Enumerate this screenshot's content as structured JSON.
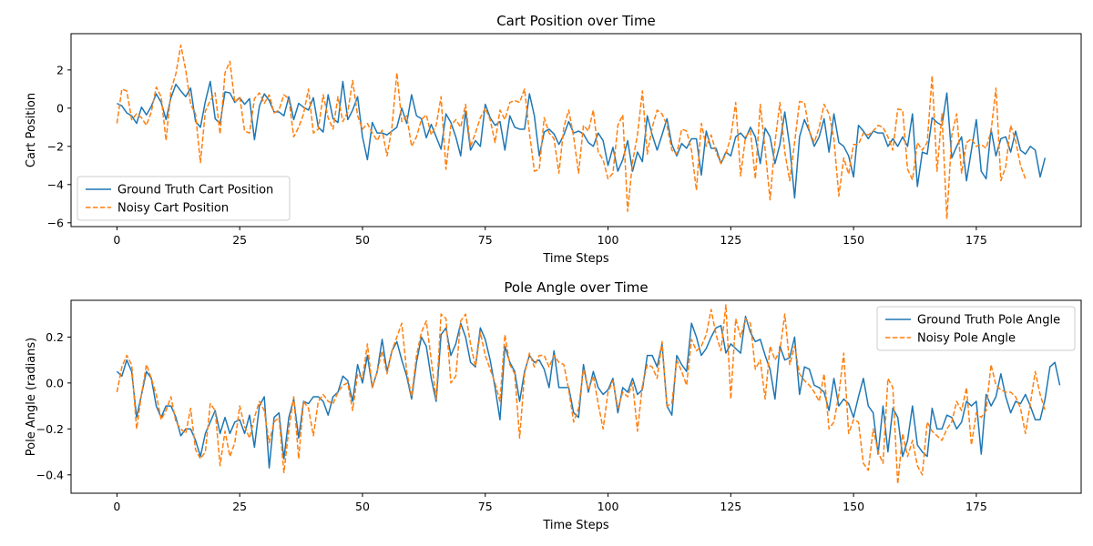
{
  "chart_data": [
    {
      "type": "line",
      "title": "Cart Position over Time",
      "xlabel": "Time Steps",
      "ylabel": "Cart Position",
      "xlim": [
        -9.35,
        196.35
      ],
      "ylim": [
        -6.2,
        3.9
      ],
      "xticks": [
        0,
        25,
        50,
        75,
        100,
        125,
        150,
        175
      ],
      "yticks": [
        -6,
        -4,
        -2,
        0,
        2
      ],
      "legend": "lower-left",
      "grid": false,
      "series": [
        {
          "name": "Ground Truth Cart Position",
          "color": "#1f77b4",
          "style": "solid",
          "values": [
            0.25,
            0.12,
            -0.25,
            -0.4,
            -0.8,
            0.05,
            -0.35,
            0.1,
            0.75,
            0.3,
            -0.6,
            0.55,
            1.25,
            0.9,
            0.6,
            1.05,
            -0.7,
            -1.0,
            0.35,
            1.4,
            -0.55,
            -0.8,
            0.85,
            0.8,
            0.3,
            0.55,
            0.2,
            0.5,
            -1.65,
            0.1,
            0.75,
            0.4,
            -0.2,
            -0.2,
            -0.4,
            0.6,
            -0.6,
            0.25,
            0.05,
            -0.1,
            0.55,
            -1.0,
            -1.25,
            0.7,
            -0.55,
            -0.75,
            1.4,
            -0.6,
            -0.1,
            0.6,
            -1.5,
            -2.7,
            -0.75,
            -1.3,
            -1.3,
            -1.4,
            -1.2,
            -1.0,
            0.0,
            -0.8,
            0.7,
            -0.4,
            -0.55,
            -1.55,
            -0.85,
            -1.5,
            -2.15,
            -0.3,
            -0.75,
            -1.5,
            -2.5,
            -0.15,
            -2.2,
            -1.7,
            -2.0,
            0.2,
            -0.5,
            -0.9,
            -0.7,
            -2.2,
            -0.4,
            -1.0,
            -1.1,
            -1.1,
            0.75,
            -0.4,
            -2.5,
            -1.25,
            -1.1,
            -1.35,
            -1.9,
            -1.4,
            -0.7,
            -1.3,
            -1.2,
            -1.35,
            -1.8,
            -2.0,
            -1.3,
            -1.7,
            -3.0,
            -2.05,
            -3.3,
            -2.7,
            -1.7,
            -3.3,
            -2.3,
            -2.8,
            -0.4,
            -1.4,
            -2.2,
            -1.4,
            -0.55,
            -1.9,
            -2.5,
            -1.85,
            -2.1,
            -1.6,
            -1.6,
            -3.5,
            -1.2,
            -2.1,
            -2.1,
            -2.9,
            -2.3,
            -2.5,
            -1.5,
            -1.3,
            -1.6,
            -1.0,
            -1.5,
            -2.9,
            -1.05,
            -1.5,
            -2.9,
            -1.9,
            -0.2,
            -2.0,
            -4.7,
            -1.5,
            -0.6,
            -1.2,
            -2.0,
            -1.5,
            -0.55,
            -2.3,
            -0.3,
            -1.8,
            -2.0,
            -2.5,
            -3.6,
            -0.9,
            -1.2,
            -1.6,
            -1.2,
            -1.3,
            -1.3,
            -2.0,
            -1.6,
            -2.0,
            -1.5,
            -2.0,
            -0.3,
            -4.1,
            -2.3,
            -2.4,
            -0.5,
            -0.75,
            -0.9,
            0.8,
            -2.6,
            -2.0,
            -1.5,
            -3.8,
            -2.2,
            -0.6,
            -3.3,
            -3.7,
            -1.1,
            -2.5,
            -1.6,
            -1.5,
            -2.3,
            -1.2,
            -2.2,
            -2.4,
            -2.0,
            -2.2,
            -3.6,
            -2.6
          ]
        },
        {
          "name": "Noisy Cart Position",
          "color": "#ff7f0e",
          "style": "dashed",
          "values": [
            -0.8,
            1.0,
            0.9,
            -0.6,
            -0.3,
            -0.5,
            -0.9,
            -0.2,
            1.1,
            0.6,
            -1.7,
            0.95,
            1.8,
            3.3,
            2.0,
            0.2,
            -0.3,
            -2.85,
            -0.15,
            0.4,
            0.8,
            -1.35,
            1.85,
            2.45,
            0.3,
            0.6,
            -1.2,
            -1.3,
            0.5,
            0.8,
            0.25,
            0.7,
            -0.25,
            -0.1,
            0.7,
            0.5,
            -1.5,
            -1.0,
            -0.3,
            1.0,
            -1.3,
            -1.1,
            0.7,
            -0.5,
            -1.1,
            0.6,
            -0.7,
            -0.2,
            1.45,
            -0.4,
            -1.1,
            -0.8,
            -1.3,
            -1.7,
            -1.15,
            -2.5,
            -1.0,
            1.85,
            -0.7,
            -0.4,
            -2.0,
            -1.5,
            -0.6,
            -0.35,
            -1.4,
            -0.9,
            0.6,
            -3.2,
            -0.9,
            -0.6,
            -1.0,
            0.2,
            -2.0,
            -1.3,
            -0.5,
            0.0,
            -0.6,
            -1.8,
            -0.1,
            -0.6,
            0.3,
            0.4,
            0.3,
            1.0,
            -1.3,
            -3.3,
            -3.2,
            -0.5,
            -1.3,
            -1.6,
            -3.4,
            -1.0,
            -0.1,
            -1.5,
            -3.4,
            -0.9,
            -1.2,
            -0.1,
            -2.3,
            -2.7,
            -3.7,
            -3.4,
            -0.9,
            -0.35,
            -5.4,
            -2.8,
            -1.4,
            0.9,
            -2.4,
            -1.0,
            -0.1,
            -0.3,
            -0.9,
            -2.2,
            -2.4,
            -1.1,
            -1.2,
            -2.2,
            -4.3,
            -0.8,
            -2.0,
            -1.4,
            -2.3,
            -2.9,
            -2.4,
            -1.5,
            0.3,
            -3.55,
            -1.5,
            -1.2,
            -3.7,
            0.2,
            -2.2,
            -4.8,
            -1.8,
            0.3,
            -2.3,
            -3.8,
            -1.8,
            0.35,
            0.3,
            -1.2,
            -1.8,
            -1.0,
            0.2,
            -0.3,
            -1.6,
            -4.6,
            -2.6,
            -3.45,
            -1.9,
            -1.9,
            -1.3,
            -1.4,
            -1.2,
            -0.9,
            -1.0,
            -1.5,
            -2.2,
            -0.05,
            -0.1,
            -3.2,
            -3.75,
            -1.8,
            -2.2,
            -1.8,
            1.7,
            -3.3,
            -0.3,
            -5.8,
            -1.4,
            -0.3,
            -3.4,
            -1.8,
            -1.6,
            -2.0,
            -1.9,
            -2.1,
            -1.2,
            1.05,
            -3.8,
            -3.05,
            -0.9,
            -1.7,
            -3.0,
            -3.7
          ]
        }
      ]
    },
    {
      "type": "line",
      "title": "Pole Angle over Time",
      "xlabel": "Time Steps",
      "ylabel": "Pole Angle (radians)",
      "xlim": [
        -9.35,
        196.35
      ],
      "ylim": [
        -0.48,
        0.36
      ],
      "xticks": [
        0,
        25,
        50,
        75,
        100,
        125,
        150,
        175
      ],
      "yticks": [
        -0.4,
        -0.2,
        0.0,
        0.2
      ],
      "ytick_labels": [
        "−0.4",
        "−0.2",
        "0.0",
        "0.2"
      ],
      "legend": "top-right",
      "grid": false,
      "series": [
        {
          "name": "Ground Truth Pole Angle",
          "color": "#1f77b4",
          "style": "solid",
          "values": [
            0.05,
            0.03,
            0.1,
            0.05,
            -0.15,
            -0.05,
            0.05,
            0.02,
            -0.1,
            -0.15,
            -0.1,
            -0.1,
            -0.15,
            -0.23,
            -0.2,
            -0.2,
            -0.25,
            -0.32,
            -0.22,
            -0.17,
            -0.12,
            -0.22,
            -0.15,
            -0.22,
            -0.17,
            -0.16,
            -0.22,
            -0.14,
            -0.28,
            -0.1,
            -0.06,
            -0.37,
            -0.15,
            -0.13,
            -0.33,
            -0.15,
            -0.07,
            -0.24,
            -0.08,
            -0.09,
            -0.06,
            -0.06,
            -0.08,
            -0.14,
            -0.06,
            -0.04,
            0.03,
            0.01,
            -0.08,
            0.08,
            0.0,
            0.12,
            -0.02,
            0.05,
            0.19,
            0.05,
            0.14,
            0.18,
            0.1,
            0.03,
            -0.07,
            0.09,
            0.2,
            0.16,
            0.02,
            -0.08,
            0.21,
            0.24,
            0.12,
            0.17,
            0.26,
            0.2,
            0.09,
            0.07,
            0.24,
            0.19,
            0.1,
            -0.02,
            -0.16,
            0.16,
            0.09,
            0.05,
            -0.08,
            0.05,
            0.12,
            0.09,
            0.1,
            0.06,
            -0.02,
            0.14,
            -0.02,
            -0.02,
            -0.02,
            -0.13,
            -0.15,
            0.08,
            -0.04,
            0.05,
            -0.02,
            -0.05,
            -0.03,
            0.02,
            -0.13,
            -0.02,
            -0.04,
            0.02,
            -0.05,
            -0.03,
            0.12,
            0.12,
            0.07,
            0.17,
            -0.1,
            -0.14,
            0.12,
            0.08,
            0.05,
            0.26,
            0.2,
            0.12,
            0.15,
            0.2,
            0.24,
            0.25,
            0.13,
            0.17,
            0.15,
            0.13,
            0.29,
            0.22,
            0.18,
            0.19,
            0.12,
            0.06,
            -0.07,
            0.16,
            0.1,
            0.11,
            0.2,
            -0.05,
            0.07,
            0.06,
            -0.01,
            -0.02,
            -0.04,
            -0.12,
            0.02,
            -0.1,
            -0.07,
            -0.09,
            -0.15,
            -0.06,
            0.02,
            -0.1,
            -0.13,
            -0.31,
            -0.1,
            -0.3,
            -0.11,
            -0.15,
            -0.32,
            -0.25,
            -0.1,
            -0.27,
            -0.3,
            -0.32,
            -0.11,
            -0.2,
            -0.2,
            -0.14,
            -0.15,
            -0.2,
            -0.17,
            -0.08,
            -0.1,
            -0.08,
            -0.31,
            -0.05,
            -0.1,
            -0.06,
            0.04,
            -0.06,
            -0.13,
            -0.08,
            -0.09,
            -0.05,
            -0.1,
            -0.16,
            -0.16,
            -0.07,
            0.07,
            0.09,
            -0.01
          ]
        },
        {
          "name": "Noisy Pole Angle",
          "color": "#ff7f0e",
          "style": "dashed",
          "values": [
            -0.04,
            0.07,
            0.12,
            0.08,
            -0.2,
            -0.05,
            0.08,
            0.02,
            -0.05,
            -0.16,
            -0.12,
            -0.06,
            -0.17,
            -0.2,
            -0.22,
            -0.11,
            -0.29,
            -0.33,
            -0.3,
            -0.09,
            -0.12,
            -0.36,
            -0.21,
            -0.32,
            -0.26,
            -0.1,
            -0.19,
            -0.24,
            -0.15,
            -0.08,
            -0.12,
            -0.26,
            -0.17,
            -0.15,
            -0.39,
            -0.2,
            -0.06,
            -0.33,
            -0.08,
            -0.11,
            -0.23,
            -0.08,
            -0.05,
            -0.08,
            -0.09,
            -0.04,
            -0.01,
            0.0,
            -0.12,
            0.04,
            0.02,
            0.17,
            -0.02,
            0.05,
            0.14,
            0.04,
            0.14,
            0.2,
            0.26,
            0.05,
            -0.06,
            0.12,
            0.22,
            0.27,
            0.1,
            -0.07,
            0.3,
            0.28,
            0.0,
            0.03,
            0.27,
            0.3,
            0.17,
            0.07,
            0.22,
            0.12,
            0.06,
            0.0,
            -0.08,
            0.21,
            0.08,
            0.04,
            -0.24,
            0.04,
            0.13,
            0.07,
            0.12,
            0.12,
            0.07,
            0.12,
            0.09,
            0.08,
            -0.03,
            -0.17,
            -0.11,
            0.06,
            -0.03,
            0.03,
            -0.09,
            -0.2,
            -0.04,
            0.01,
            -0.11,
            -0.04,
            -0.06,
            0.0,
            -0.21,
            -0.01,
            0.08,
            0.07,
            0.02,
            0.18,
            -0.1,
            -0.09,
            0.1,
            0.05,
            -0.01,
            0.19,
            0.14,
            0.16,
            0.21,
            0.32,
            0.21,
            0.14,
            0.34,
            -0.07,
            0.28,
            0.2,
            0.28,
            0.26,
            0.06,
            0.1,
            -0.07,
            0.16,
            0.1,
            0.14,
            0.3,
            0.08,
            0.16,
            0.04,
            0.01,
            -0.01,
            -0.04,
            -0.08,
            0.04,
            -0.2,
            -0.17,
            -0.05,
            0.13,
            -0.22,
            -0.16,
            -0.17,
            -0.35,
            -0.38,
            -0.2,
            -0.3,
            -0.35,
            0.02,
            -0.02,
            -0.44,
            -0.22,
            -0.32,
            -0.25,
            -0.36,
            -0.4,
            -0.17,
            -0.21,
            -0.23,
            -0.25,
            -0.2,
            -0.17,
            -0.08,
            -0.12,
            -0.02,
            -0.27,
            -0.13,
            -0.15,
            -0.12,
            0.08,
            -0.01,
            -0.03,
            -0.04,
            -0.04,
            -0.06,
            -0.11,
            -0.22,
            -0.09,
            0.05,
            -0.05,
            -0.12
          ]
        }
      ]
    }
  ]
}
